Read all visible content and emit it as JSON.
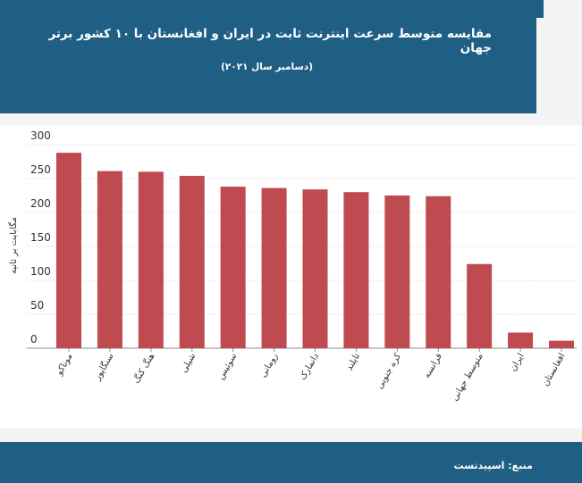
{
  "title": "مقایسه متوسط سرعت اینترنت ثابت در ایران و افغانستان با ۱۰ کشور برتر جهان",
  "subtitle": "(دسامبر سال ۲۰۲۱)",
  "source": "منبع: اسپیدتست",
  "colors": {
    "header": "#1f5f84",
    "bar": "#bf4a4f",
    "background": "#f4f4f4"
  },
  "chart_data": {
    "type": "bar",
    "title": "مقایسه متوسط سرعت اینترنت ثابت در ایران و افغانستان با ۱۰ کشور برتر جهان",
    "subtitle": "(دسامبر سال ۲۰۲۱)",
    "xlabel": "",
    "ylabel": "مگابایت بر ثانیه",
    "categories": [
      "موناکو",
      "سنگاپور",
      "هنگ کنگ",
      "شیلی",
      "سوئیس",
      "رومانی",
      "دانمارک",
      "تایلند",
      "کره جنوبی",
      "فرانسه",
      "متوسط جهانی",
      "ایران",
      "افغانستان"
    ],
    "values": [
      288,
      261,
      260,
      254,
      238,
      236,
      234,
      230,
      225,
      224,
      124,
      23,
      11
    ],
    "ylim": [
      0,
      300
    ],
    "yticks": [
      0,
      50,
      100,
      150,
      200,
      250,
      300
    ],
    "grid": true,
    "legend": "none"
  }
}
